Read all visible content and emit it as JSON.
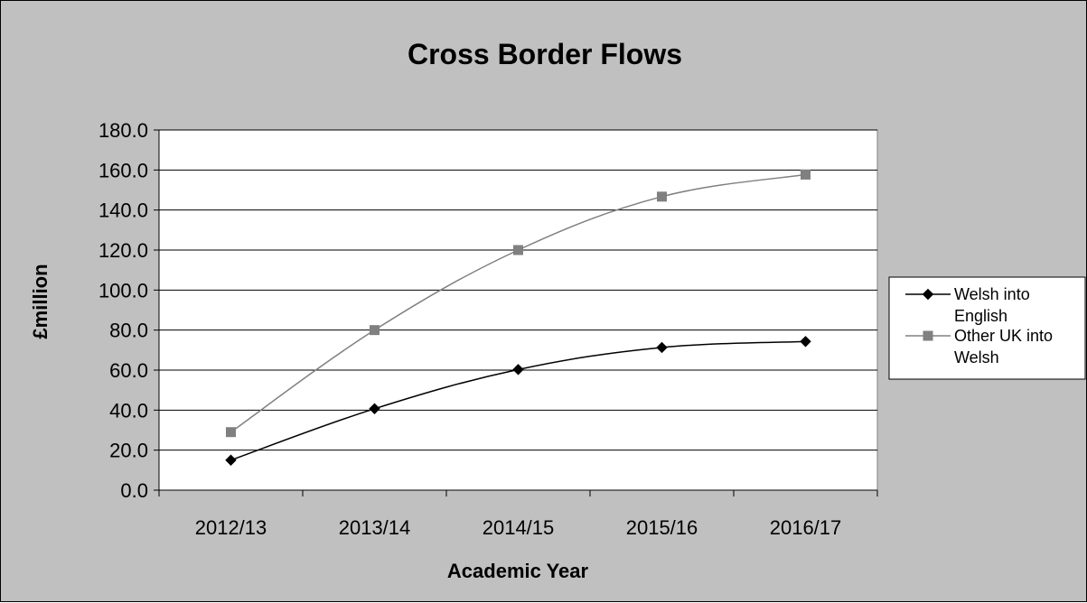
{
  "chart_data": {
    "type": "line",
    "title": "Cross Border Flows",
    "xlabel": "Academic Year",
    "ylabel": "£million",
    "categories": [
      "2012/13",
      "2013/14",
      "2014/15",
      "2015/16",
      "2016/17"
    ],
    "ylim": [
      0,
      180
    ],
    "ytick_step": 20,
    "ytick_labels": [
      "0.0",
      "20.0",
      "40.0",
      "60.0",
      "80.0",
      "100.0",
      "120.0",
      "140.0",
      "160.0",
      "180.0"
    ],
    "grid": true,
    "legend_position": "right",
    "series": [
      {
        "name": "Welsh into English",
        "legend_lines": [
          "Welsh into",
          "English"
        ],
        "values": [
          15.0,
          40.7,
          60.3,
          71.3,
          74.3
        ],
        "color": "#000000",
        "marker": "diamond"
      },
      {
        "name": "Other UK into Welsh",
        "legend_lines": [
          "Other UK into",
          "Welsh"
        ],
        "values": [
          29.0,
          80.0,
          120.0,
          146.7,
          157.7
        ],
        "color": "#808080",
        "marker": "square"
      }
    ],
    "colors": {
      "background": "#c0c0c0",
      "plot_area": "#ffffff",
      "grid": "#000000"
    }
  }
}
